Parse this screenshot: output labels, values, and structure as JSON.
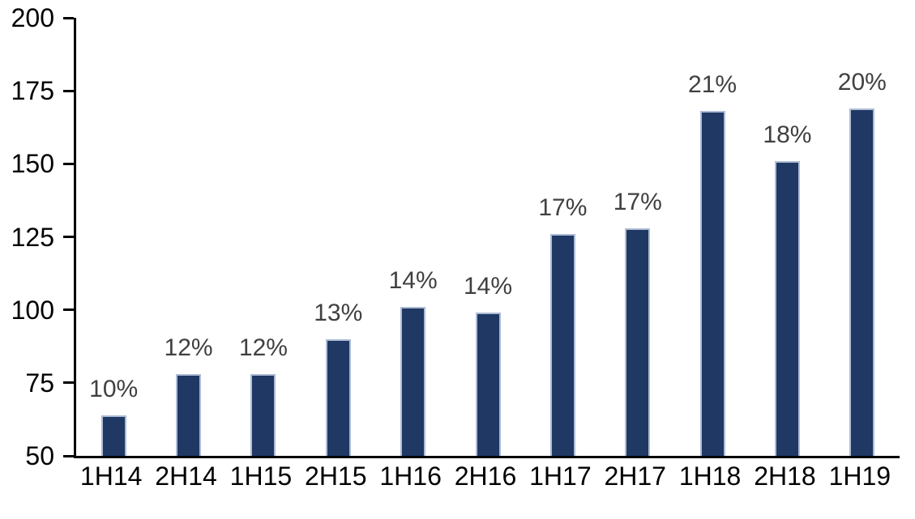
{
  "chart_data": {
    "type": "bar",
    "title": "",
    "xlabel": "",
    "ylabel": "",
    "categories": [
      "1H14",
      "2H14",
      "1H15",
      "2H15",
      "1H16",
      "2H16",
      "1H17",
      "2H17",
      "1H18",
      "2H18",
      "1H19"
    ],
    "values": [
      64,
      78,
      78,
      90,
      101,
      99,
      126,
      128,
      168,
      151,
      169
    ],
    "bar_labels": [
      "10%",
      "12%",
      "12%",
      "13%",
      "14%",
      "14%",
      "17%",
      "17%",
      "21%",
      "18%",
      "20%"
    ],
    "ylim": [
      50,
      200
    ],
    "yticks": [
      50,
      75,
      100,
      125,
      150,
      175,
      200
    ],
    "ytick_labels": [
      "50",
      "75",
      "100",
      "125",
      "150",
      "175",
      "200"
    ],
    "grid": false,
    "legend_position": "none",
    "colors": {
      "bar_fill": "#1F3864",
      "bar_border": "#AEBCD4",
      "axis_line": "#000000",
      "axis_text": "#000000",
      "data_label_text": "#404040",
      "background": "#FFFFFF"
    }
  }
}
